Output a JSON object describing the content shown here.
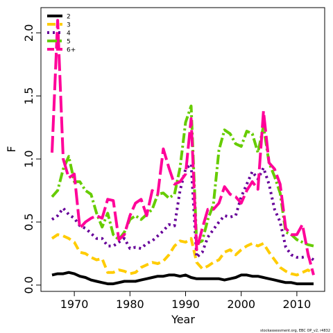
{
  "chart_data": {
    "type": "line",
    "xlabel": "Year",
    "ylabel": "F",
    "xlim": [
      1964,
      2015
    ],
    "ylim": [
      -0.05,
      2.2
    ],
    "x_ticks": [
      1970,
      1980,
      1990,
      2000,
      2010
    ],
    "y_ticks": [
      0.0,
      0.5,
      1.0,
      1.5,
      2.0
    ],
    "y_tick_labels": [
      "0.0",
      "0.5",
      "1.0",
      "1.5",
      "2.0"
    ],
    "grid": false,
    "legend_position": "top-left",
    "footer": "stockassessment.org, EBC OP_v2, r4832",
    "x": [
      1966,
      1967,
      1968,
      1969,
      1970,
      1971,
      1972,
      1973,
      1974,
      1975,
      1976,
      1977,
      1978,
      1979,
      1980,
      1981,
      1982,
      1983,
      1984,
      1985,
      1986,
      1987,
      1988,
      1989,
      1990,
      1991,
      1992,
      1993,
      1994,
      1995,
      1996,
      1997,
      1998,
      1999,
      2000,
      2001,
      2002,
      2003,
      2004,
      2005,
      2006,
      2007,
      2008,
      2009,
      2010,
      2011,
      2012,
      2013
    ],
    "series": [
      {
        "name": "2",
        "color": "#000000",
        "dash": "solid",
        "width": 4,
        "values": [
          0.08,
          0.09,
          0.09,
          0.1,
          0.09,
          0.07,
          0.06,
          0.04,
          0.03,
          0.02,
          0.01,
          0.01,
          0.02,
          0.03,
          0.03,
          0.03,
          0.04,
          0.05,
          0.06,
          0.07,
          0.07,
          0.08,
          0.08,
          0.07,
          0.08,
          0.06,
          0.05,
          0.05,
          0.05,
          0.05,
          0.05,
          0.04,
          0.05,
          0.06,
          0.08,
          0.08,
          0.07,
          0.07,
          0.06,
          0.05,
          0.04,
          0.03,
          0.02,
          0.02,
          0.01,
          0.01,
          0.01,
          0.01
        ]
      },
      {
        "name": "3",
        "color": "#ffcc00",
        "dash": "12 6",
        "width": 4,
        "values": [
          0.37,
          0.4,
          0.39,
          0.37,
          0.34,
          0.26,
          0.25,
          0.22,
          0.2,
          0.21,
          0.1,
          0.1,
          0.12,
          0.11,
          0.09,
          0.1,
          0.14,
          0.16,
          0.18,
          0.17,
          0.19,
          0.24,
          0.31,
          0.35,
          0.34,
          0.37,
          0.18,
          0.13,
          0.15,
          0.18,
          0.2,
          0.26,
          0.28,
          0.24,
          0.28,
          0.31,
          0.33,
          0.31,
          0.33,
          0.26,
          0.2,
          0.14,
          0.11,
          0.09,
          0.08,
          0.1,
          0.12,
          0.09
        ]
      },
      {
        "name": "4",
        "color": "#660099",
        "dash": "3 5",
        "width": 4,
        "values": [
          0.52,
          0.55,
          0.61,
          0.56,
          0.53,
          0.47,
          0.45,
          0.41,
          0.37,
          0.37,
          0.31,
          0.31,
          0.34,
          0.37,
          0.29,
          0.3,
          0.29,
          0.33,
          0.35,
          0.39,
          0.43,
          0.48,
          0.47,
          0.75,
          0.92,
          0.96,
          0.22,
          0.26,
          0.38,
          0.44,
          0.5,
          0.55,
          0.54,
          0.55,
          0.7,
          0.8,
          0.9,
          0.84,
          0.93,
          0.8,
          0.6,
          0.5,
          0.3,
          0.24,
          0.22,
          0.22,
          0.23,
          0.2
        ]
      },
      {
        "name": "5",
        "color": "#66cc00",
        "dash": "14 4 3 4",
        "width": 4,
        "values": [
          0.7,
          0.75,
          0.92,
          1.02,
          0.82,
          0.82,
          0.75,
          0.72,
          0.57,
          0.46,
          0.57,
          0.4,
          0.36,
          0.42,
          0.52,
          0.55,
          0.52,
          0.56,
          0.6,
          0.72,
          0.73,
          0.69,
          0.72,
          0.93,
          1.29,
          1.42,
          0.33,
          0.35,
          0.52,
          0.64,
          1.07,
          1.23,
          1.2,
          1.12,
          1.1,
          1.22,
          1.2,
          1.05,
          1.26,
          0.97,
          0.86,
          0.73,
          0.42,
          0.4,
          0.36,
          0.34,
          0.32,
          0.31
        ]
      },
      {
        "name": "6+",
        "color": "#ff0099",
        "dash": "24 6",
        "width": 4,
        "values": [
          1.05,
          2.1,
          1.0,
          0.85,
          0.88,
          0.45,
          0.5,
          0.53,
          0.55,
          0.53,
          0.68,
          0.67,
          0.36,
          0.4,
          0.55,
          0.65,
          0.68,
          0.55,
          0.75,
          0.72,
          1.08,
          0.93,
          0.8,
          0.82,
          0.88,
          1.32,
          0.28,
          0.45,
          0.6,
          0.6,
          0.65,
          0.78,
          0.72,
          0.7,
          0.65,
          0.75,
          0.82,
          0.76,
          1.38,
          0.97,
          0.92,
          0.8,
          0.45,
          0.4,
          0.4,
          0.48,
          0.25,
          0.08
        ]
      }
    ]
  }
}
